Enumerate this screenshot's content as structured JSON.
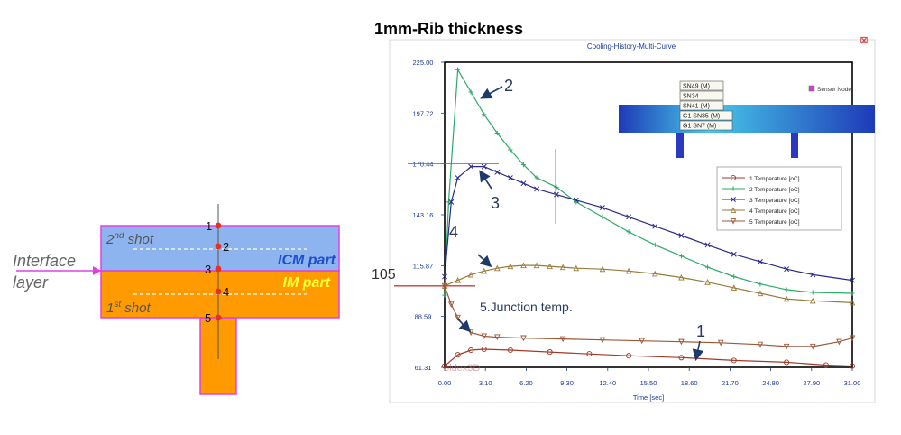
{
  "left_diagram": {
    "labels": {
      "interface": "Interface",
      "layer": "layer",
      "second_shot_num": "2",
      "second_shot_sup": "nd",
      "second_shot_word": " shot",
      "first_shot_num": "1",
      "first_shot_sup": "st",
      "first_shot_word": " shot",
      "icm_part": "ICM part",
      "im_part": "IM part"
    },
    "node_labels": [
      "1",
      "2",
      "3",
      "4",
      "5"
    ],
    "colors": {
      "icm": "#8eb4f0",
      "im": "#ff9a00",
      "border": "#e040e0",
      "node": "#e83020",
      "icm_text": "#1f4fc8",
      "im_text": "#ffff33"
    }
  },
  "heading": "1mm-Rib thickness",
  "chart_window": {
    "title": "Cooling-History-Multi-Curve",
    "close_symbol": "⊠",
    "watermark": "oldex3D",
    "sensor_legend": "Sensor Node",
    "sensor_tags": [
      "SN49 (M)",
      "SN34",
      "SN41 (M)",
      "G1 SN35 (M)",
      "G1 SN7 (M)"
    ]
  },
  "annotations": {
    "curve_2": "2",
    "curve_3": "3",
    "curve_4": "4",
    "curve_5": "5.Junction temp.",
    "curve_1": "1",
    "y_105": "105"
  },
  "chart_data": {
    "type": "line",
    "title": "Cooling-History-Multi-Curve",
    "xlabel": "Time [sec]",
    "ylabel": "",
    "xlim": [
      0,
      31
    ],
    "ylim": [
      61.31,
      225
    ],
    "x_ticks": [
      "0.00",
      "3.10",
      "6.20",
      "9.30",
      "12.40",
      "15.50",
      "18.60",
      "21.70",
      "24.80",
      "27.90",
      "31.00"
    ],
    "y_ticks": [
      "61.31",
      "88.59",
      "115.87",
      "143.16",
      "170.44",
      "197.72",
      "225.00"
    ],
    "series": [
      {
        "name": "1",
        "legend_label": "1   Temperature [oC]",
        "color": "#a03a2a",
        "marker": "circle",
        "x": [
          0,
          1,
          2,
          3,
          5,
          8,
          11,
          14,
          18,
          22,
          26,
          29,
          31
        ],
        "y": [
          62,
          68,
          70.5,
          71,
          70.5,
          69.5,
          68.5,
          67.5,
          66.5,
          65,
          64,
          62.5,
          62
        ]
      },
      {
        "name": "2",
        "legend_label": "2   Temperature [oC]",
        "color": "#2ea86a",
        "marker": "plus",
        "x": [
          0,
          0.3,
          1,
          2,
          3,
          4,
          5,
          6,
          7,
          8.5,
          10,
          12,
          14,
          16,
          18,
          20,
          22,
          24,
          26,
          28,
          31
        ],
        "y": [
          100,
          150,
          221,
          209,
          197,
          187,
          178,
          170,
          163,
          158,
          150,
          142,
          134,
          127,
          121,
          115,
          110,
          106,
          103,
          101.5,
          101
        ]
      },
      {
        "name": "3",
        "legend_label": "3   Temperature [oC]",
        "color": "#2a2a8a",
        "marker": "x",
        "x": [
          0,
          0.5,
          1,
          2,
          3,
          4,
          5,
          6,
          7,
          8.5,
          10,
          12,
          14,
          16,
          18,
          20,
          22,
          24,
          26,
          28,
          31
        ],
        "y": [
          110,
          150,
          163,
          169,
          169,
          166,
          163,
          160,
          157,
          154,
          151,
          147,
          142,
          137,
          132,
          127,
          122,
          118,
          114,
          111,
          108
        ]
      },
      {
        "name": "4",
        "legend_label": "4   Temperature [oC]",
        "color": "#9a7a3a",
        "marker": "triangle",
        "x": [
          0,
          1,
          2,
          3,
          4,
          5,
          6,
          7,
          8,
          9,
          10,
          12,
          14,
          16,
          18,
          20,
          22,
          24,
          26,
          28,
          31
        ],
        "y": [
          105,
          108,
          111,
          113,
          114.5,
          115.5,
          116,
          116,
          115.5,
          115,
          114.5,
          114,
          113,
          111.5,
          109.5,
          107,
          104,
          101,
          98,
          97,
          96
        ]
      },
      {
        "name": "5",
        "legend_label": "5   Temperature [oC]",
        "color": "#9a5a3a",
        "marker": "triangle-down",
        "x": [
          0,
          0.5,
          1,
          1.5,
          2,
          3,
          4,
          6,
          9,
          12,
          15,
          18,
          21,
          24,
          26,
          28,
          30,
          31
        ],
        "y": [
          105,
          95,
          88,
          83,
          80,
          78,
          77.5,
          77,
          76.5,
          76,
          75.5,
          75,
          74.5,
          73.5,
          72.5,
          72.5,
          75,
          77
        ]
      }
    ]
  }
}
